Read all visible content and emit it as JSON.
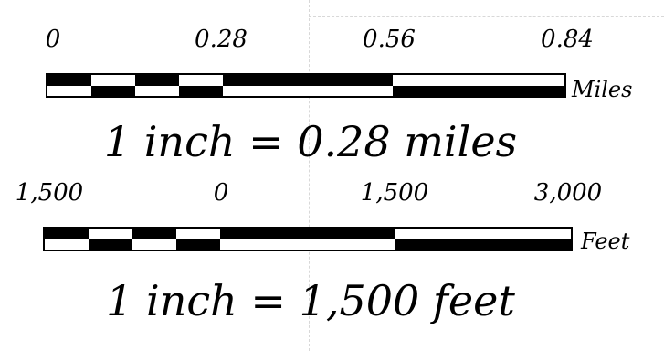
{
  "scale_bars": [
    {
      "id": "miles",
      "ticks": [
        "0",
        "0.28",
        "0.56",
        "0.84"
      ],
      "unit": "Miles",
      "statement": "1 inch = 0.28 miles"
    },
    {
      "id": "feet",
      "ticks": [
        "1,500",
        "0",
        "1,500",
        "3,000"
      ],
      "unit": "Feet",
      "statement": "1 inch = 1,500 feet"
    }
  ],
  "colors": {
    "ink": "#000000",
    "paper": "#ffffff",
    "guide": "#d8d8d8"
  }
}
